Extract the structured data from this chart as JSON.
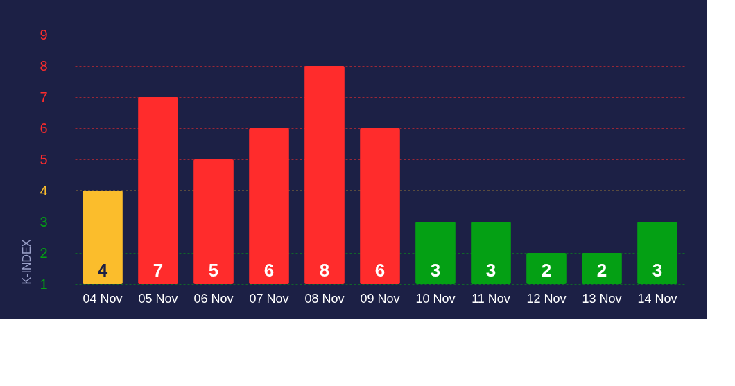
{
  "chart_data": {
    "type": "bar",
    "ylabel": "K-INDEX",
    "categories": [
      "04 Nov",
      "05 Nov",
      "06 Nov",
      "07 Nov",
      "08 Nov",
      "09 Nov",
      "10 Nov",
      "11 Nov",
      "12 Nov",
      "13 Nov",
      "14 Nov"
    ],
    "values": [
      4,
      7,
      5,
      6,
      8,
      6,
      3,
      3,
      2,
      2,
      3
    ],
    "colors": [
      "#fbbd2c",
      "#ff2c2c",
      "#ff2c2c",
      "#ff2c2c",
      "#ff2c2c",
      "#ff2c2c",
      "#04a014",
      "#04a014",
      "#04a014",
      "#04a014",
      "#04a014"
    ],
    "ylim": [
      1,
      9
    ],
    "yticks": [
      1,
      2,
      3,
      4,
      5,
      6,
      7,
      8,
      9
    ],
    "grid": "y",
    "data_labels": true,
    "ref_lines": [
      {
        "axis": "y",
        "value": 4,
        "color": "#977637",
        "line_style": "dashed"
      }
    ]
  }
}
